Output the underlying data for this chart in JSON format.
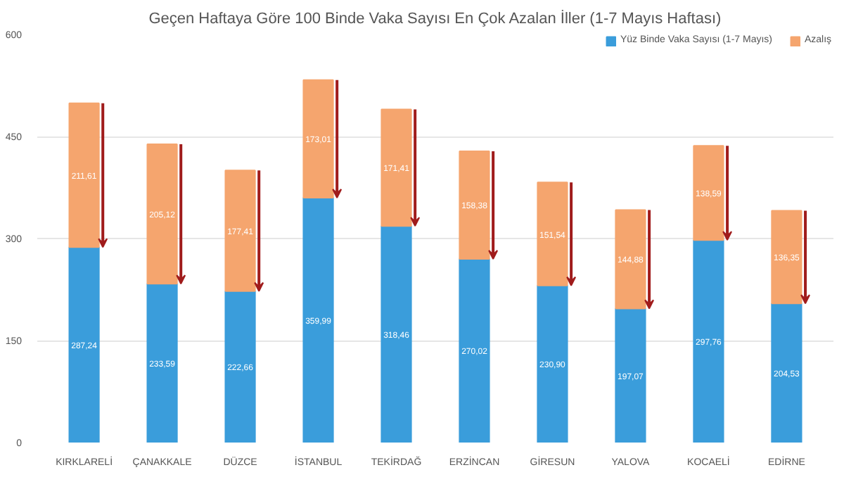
{
  "chart_data": {
    "type": "bar",
    "title": "Geçen Haftaya Göre 100 Binde Vaka Sayısı En Çok Azalan İller (1-7 Mayıs Haftası)",
    "categories": [
      "KIRKLARELİ",
      "ÇANAKKALE",
      "DÜZCE",
      "İSTANBUL",
      "TEKİRDAĞ",
      "ERZİNCAN",
      "GİRESUN",
      "YALOVA",
      "KOCAELİ",
      "EDİRNE"
    ],
    "stacked": true,
    "series": [
      {
        "name": "Yüz Binde Vaka Sayısı (1-7 Mayıs)",
        "color": "#3a9ddb",
        "values": [
          287.24,
          233.59,
          222.66,
          359.99,
          318.46,
          270.02,
          230.9,
          197.07,
          297.76,
          204.53
        ],
        "value_labels": [
          "287,24",
          "233,59",
          "222,66",
          "359,99",
          "318,46",
          "270,02",
          "230,90",
          "197,07",
          "297,76",
          "204,53"
        ]
      },
      {
        "name": "Azalış",
        "color": "#f5a56e",
        "values": [
          211.61,
          205.12,
          177.41,
          173.01,
          171.41,
          158.38,
          151.54,
          144.88,
          138.59,
          136.35
        ],
        "value_labels": [
          "211,61",
          "205,12",
          "177,41",
          "173,01",
          "171,41",
          "158,38",
          "151,54",
          "144,88",
          "138,59",
          "136,35"
        ]
      }
    ],
    "ylim": [
      0,
      600
    ],
    "yticks": [
      0,
      150,
      300,
      450,
      600
    ],
    "grid": "y",
    "legend": "top right"
  }
}
